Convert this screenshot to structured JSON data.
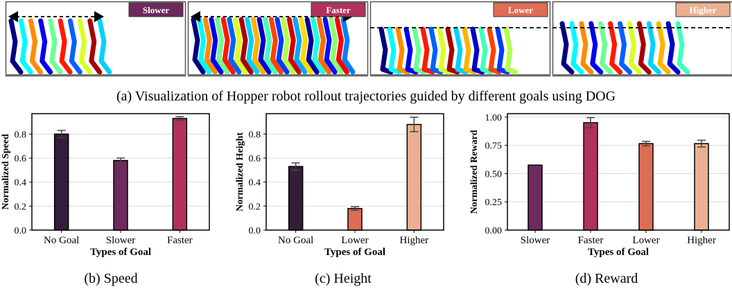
{
  "panels": [
    {
      "label": "Slower",
      "color": "#6e2a5c",
      "line": "arrow",
      "steps": 10
    },
    {
      "label": "Faster",
      "color": "#b0325a",
      "line": "arrow",
      "steps": 26
    },
    {
      "label": "Lower",
      "color": "#de6d55",
      "line": "dashed",
      "steps": 16
    },
    {
      "label": "Higher",
      "color": "#eab091",
      "line": "dashed",
      "steps": 13
    }
  ],
  "captions": {
    "a": "(a) Visualization of Hopper robot rollout trajectories guided by different goals using DOG",
    "b": "(b) Speed",
    "c": "(c) Height",
    "d": "(d) Reward"
  },
  "chart_data": [
    {
      "type": "bar",
      "categories": [
        "No Goal",
        "Slower",
        "Faster"
      ],
      "values": [
        0.8,
        0.58,
        0.93
      ],
      "errors": [
        0.03,
        0.02,
        0.015
      ],
      "colors": [
        "#341d3a",
        "#6e2a5c",
        "#b0325a"
      ],
      "xlabel": "Types of Goal",
      "ylabel": "Normalized Speed",
      "ylim": [
        0,
        0.97
      ],
      "ticks": [
        0.0,
        0.2,
        0.4,
        0.6,
        0.8
      ],
      "tick_labels": [
        "0.0",
        "0.2",
        "0.4",
        "0.6",
        "0.8"
      ],
      "grid": true
    },
    {
      "type": "bar",
      "categories": [
        "No Goal",
        "Lower",
        "Higher"
      ],
      "values": [
        0.53,
        0.18,
        0.88
      ],
      "errors": [
        0.03,
        0.015,
        0.06
      ],
      "colors": [
        "#341d3a",
        "#de6d55",
        "#eab091"
      ],
      "xlabel": "Types of Goal",
      "ylabel": "Normalized Height",
      "ylim": [
        0,
        0.97
      ],
      "ticks": [
        0.0,
        0.2,
        0.4,
        0.6,
        0.8
      ],
      "tick_labels": [
        "0.0",
        "0.2",
        "0.4",
        "0.6",
        "0.8"
      ],
      "grid": true
    },
    {
      "type": "bar",
      "categories": [
        "Slower",
        "Faster",
        "Lower",
        "Higher"
      ],
      "values": [
        0.575,
        0.95,
        0.765,
        0.765
      ],
      "errors": [
        0.0,
        0.045,
        0.02,
        0.03
      ],
      "colors": [
        "#6e2a5c",
        "#b0325a",
        "#de6d55",
        "#eab091"
      ],
      "xlabel": "Types of Goal",
      "ylabel": "Normalized Reward",
      "ylim": [
        0,
        1.03
      ],
      "ticks": [
        0.0,
        0.25,
        0.5,
        0.75,
        1.0
      ],
      "tick_labels": [
        "0.00",
        "0.25",
        "0.50",
        "0.75",
        "1.00"
      ],
      "grid": true
    }
  ]
}
